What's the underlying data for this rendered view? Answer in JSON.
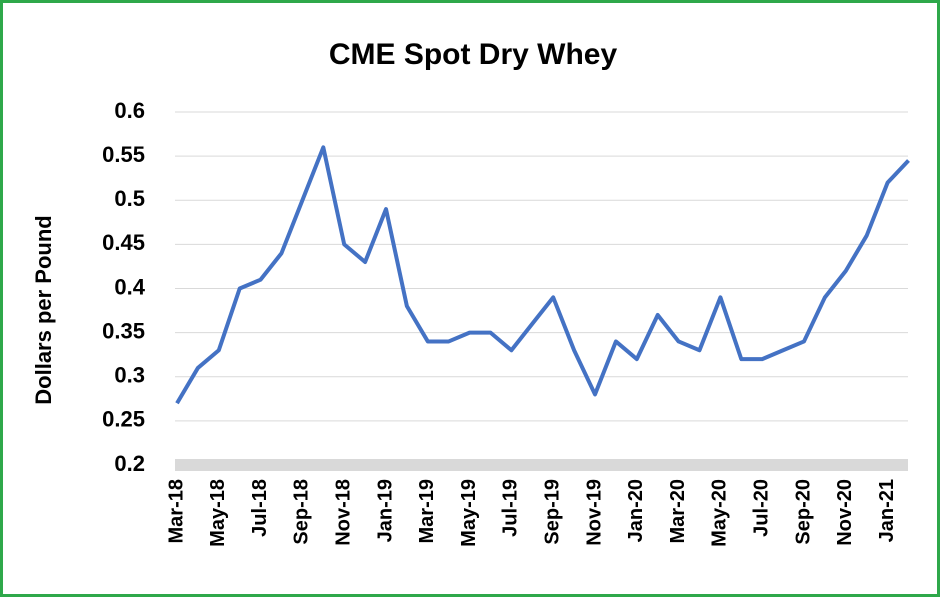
{
  "chart_data": {
    "type": "line",
    "title": "CME Spot Dry Whey",
    "y_label": "Dollars per Pound",
    "categories": [
      "Mar-18",
      null,
      "May-18",
      null,
      "Jul-18",
      null,
      "Sep-18",
      null,
      "Nov-18",
      null,
      "Jan-19",
      null,
      "Mar-19",
      null,
      "May-19",
      null,
      "Jul-19",
      null,
      "Sep-19",
      null,
      "Nov-19",
      null,
      "Jan-20",
      null,
      "Mar-20",
      null,
      "May-20",
      null,
      "Jul-20",
      null,
      "Sep-20",
      null,
      "Nov-20",
      null,
      "Jan-21",
      null
    ],
    "series": [
      {
        "name": "CME Spot Dry Whey",
        "color": "#4472c4",
        "values": [
          0.27,
          0.31,
          0.33,
          0.4,
          0.41,
          0.44,
          0.5,
          0.56,
          0.45,
          0.43,
          0.49,
          0.38,
          0.34,
          0.34,
          0.35,
          0.35,
          0.33,
          0.36,
          0.39,
          0.33,
          0.28,
          0.34,
          0.32,
          0.37,
          0.34,
          0.33,
          0.39,
          0.32,
          0.32,
          0.33,
          0.34,
          0.39,
          0.42,
          0.46,
          0.52,
          0.545
        ]
      }
    ],
    "ylim": [
      0.2,
      0.6
    ],
    "yticks": [
      0.2,
      0.25,
      0.3,
      0.35,
      0.4,
      0.45,
      0.5,
      0.55,
      0.6
    ],
    "grid": true
  }
}
